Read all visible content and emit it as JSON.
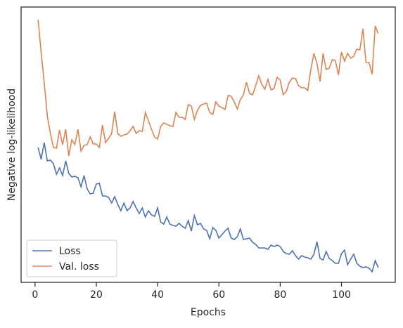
{
  "chart_data": {
    "type": "line",
    "x_label": "Epochs",
    "y_label": "Negative log-likelihood",
    "x": [
      1,
      2,
      3,
      4,
      5,
      6,
      7,
      8,
      9,
      10,
      11,
      12,
      13,
      14,
      15,
      16,
      17,
      18,
      19,
      20,
      21,
      22,
      23,
      24,
      25,
      26,
      27,
      28,
      29,
      30,
      31,
      32,
      33,
      34,
      35,
      36,
      37,
      38,
      39,
      40,
      41,
      42,
      43,
      44,
      45,
      46,
      47,
      48,
      49,
      50,
      51,
      52,
      53,
      54,
      55,
      56,
      57,
      58,
      59,
      60,
      61,
      62,
      63,
      64,
      65,
      66,
      67,
      68,
      69,
      70,
      71,
      72,
      73,
      74,
      75,
      76,
      77,
      78,
      79,
      80,
      81,
      82,
      83,
      84,
      85,
      86,
      87,
      88,
      89,
      90,
      91,
      92,
      93,
      94,
      95,
      96,
      97,
      98,
      99,
      100,
      101,
      102,
      103,
      104,
      105,
      106,
      107,
      108,
      109,
      110,
      111,
      112
    ],
    "series": [
      {
        "name": "Loss",
        "color": "#4c72b0",
        "values": [
          192,
          175,
          199,
          173,
          174,
          169,
          154,
          163,
          152,
          173,
          155,
          150,
          151,
          149,
          136,
          152,
          133,
          126,
          127,
          140,
          141,
          123,
          123,
          121,
          113,
          122,
          111,
          102,
          113,
          102,
          106,
          115,
          106,
          98,
          106,
          93,
          102,
          96,
          94,
          106,
          86,
          83,
          93,
          83,
          81,
          80,
          84,
          80,
          77,
          88,
          73,
          95,
          82,
          84,
          76,
          74,
          62,
          78,
          74,
          63,
          68,
          73,
          77,
          63,
          61,
          65,
          76,
          61,
          62,
          63,
          57,
          54,
          49,
          49,
          49,
          47,
          53,
          51,
          53,
          51,
          44,
          41,
          40,
          45,
          38,
          33,
          38,
          36,
          35,
          33,
          40,
          58,
          34,
          32,
          44,
          34,
          31,
          27,
          27,
          41,
          46,
          25,
          33,
          40,
          27,
          23,
          21,
          22,
          20,
          15,
          31,
          21
        ]
      },
      {
        "name": "Val. loss",
        "color": "#dd8452",
        "values": [
          374,
          327,
          284,
          237,
          212,
          192,
          191,
          217,
          196,
          218,
          180,
          203,
          196,
          218,
          187,
          195,
          196,
          207,
          197,
          197,
          192,
          224,
          199,
          205,
          212,
          243,
          212,
          208,
          210,
          211,
          216,
          222,
          212,
          216,
          215,
          242,
          230,
          218,
          207,
          204,
          222,
          227,
          225,
          223,
          222,
          242,
          235,
          235,
          232,
          253,
          251,
          232,
          245,
          252,
          254,
          255,
          242,
          239,
          257,
          251,
          249,
          246,
          266,
          265,
          257,
          247,
          260,
          267,
          285,
          269,
          267,
          280,
          294,
          282,
          275,
          289,
          274,
          276,
          292,
          288,
          267,
          272,
          285,
          291,
          290,
          280,
          277,
          277,
          273,
          303,
          326,
          312,
          286,
          326,
          303,
          305,
          317,
          316,
          295,
          328,
          315,
          326,
          319,
          322,
          332,
          331,
          361,
          313,
          313,
          296,
          365,
          354
        ]
      }
    ],
    "xlim": [
      -4.55,
      117.55
    ],
    "xticks": [
      0,
      20,
      40,
      60,
      80,
      100
    ],
    "ylim": [
      0,
      392
    ],
    "legend": "lower left"
  }
}
